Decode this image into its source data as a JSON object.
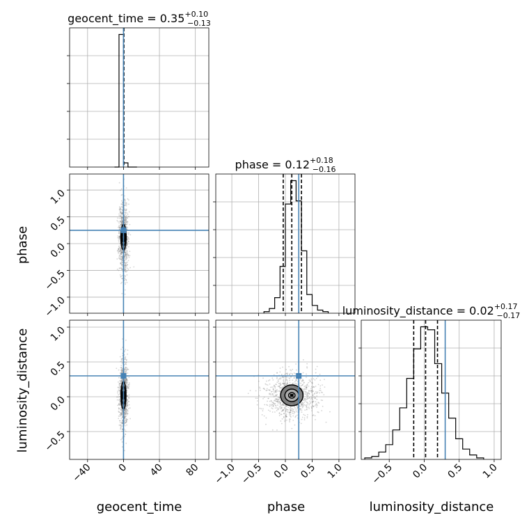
{
  "chart_data": {
    "type": "corner",
    "parameters": [
      "geocent_time",
      "phase",
      "luminosity_distance"
    ],
    "truth_color": "#4682b4",
    "grid": true,
    "axes": {
      "geocent_time": {
        "label": "geocent_time",
        "range": [
          -60,
          95
        ],
        "ticks": [
          -40,
          0,
          40,
          80
        ],
        "tick_labels": [
          "−40",
          "0",
          "40",
          "80"
        ]
      },
      "phase": {
        "label": "phase",
        "range": [
          -1.3,
          1.3
        ],
        "ticks": [
          -1.0,
          -0.5,
          0.0,
          0.5,
          1.0
        ],
        "tick_labels": [
          "−1.0",
          "−0.5",
          "0.0",
          "0.5",
          "1.0"
        ]
      },
      "luminosity_distance": {
        "label": "luminosity_distance",
        "range": [
          -0.9,
          1.1
        ],
        "ticks": [
          -0.5,
          0.0,
          0.5,
          1.0
        ],
        "tick_labels": [
          "−0.5",
          "0.0",
          "0.5",
          "1.0"
        ]
      }
    },
    "titles": [
      {
        "param": "geocent_time",
        "text": "geocent_time = 0.35",
        "sup": "+0.10",
        "sub": "−0.13"
      },
      {
        "param": "phase",
        "text": "phase = 0.12",
        "sup": "+0.18",
        "sub": "−0.16"
      },
      {
        "param": "luminosity_distance",
        "text": "luminosity_distance = 0.02",
        "sup": "+0.17",
        "sub": "−0.17"
      }
    ],
    "truths": {
      "geocent_time": 0.0,
      "phase": 0.25,
      "luminosity_distance": 0.3
    },
    "quantiles": {
      "geocent_time": [
        0.22,
        0.35,
        0.45
      ],
      "phase": [
        -0.04,
        0.12,
        0.3
      ],
      "luminosity_distance": [
        -0.15,
        0.02,
        0.19
      ]
    },
    "histograms": {
      "geocent_time": {
        "bin_edges": [
          -10,
          -5,
          0,
          5,
          10,
          15
        ],
        "counts": [
          0,
          0.95,
          0.03,
          0,
          0
        ]
      },
      "phase": {
        "bin_edges": [
          -0.4,
          -0.3,
          -0.2,
          -0.1,
          0.0,
          0.1,
          0.2,
          0.3,
          0.4,
          0.5,
          0.6,
          0.7,
          0.8
        ],
        "counts": [
          0.01,
          0.03,
          0.1,
          0.3,
          0.7,
          0.85,
          0.72,
          0.4,
          0.12,
          0.05,
          0.02,
          0.01
        ]
      },
      "luminosity_distance": {
        "bin_edges": [
          -0.85,
          -0.75,
          -0.65,
          -0.55,
          -0.45,
          -0.35,
          -0.25,
          -0.15,
          -0.05,
          0.05,
          0.15,
          0.25,
          0.35,
          0.45,
          0.55,
          0.65,
          0.75,
          0.85
        ],
        "counts": [
          0.01,
          0.02,
          0.05,
          0.1,
          0.2,
          0.35,
          0.55,
          0.75,
          0.9,
          0.88,
          0.65,
          0.45,
          0.28,
          0.14,
          0.07,
          0.03,
          0.01
        ]
      }
    },
    "density_2d": {
      "phase_vs_geocent_time": {
        "center": [
          0.0,
          0.12
        ],
        "sigma": [
          2.5,
          0.35
        ],
        "contour_sigma": [
          [
            1.4,
            0.09
          ],
          [
            2.2,
            0.16
          ],
          [
            3.0,
            0.24
          ]
        ]
      },
      "luminosity_distance_vs_geocent_time": {
        "center": [
          0.0,
          0.02
        ],
        "sigma": [
          2.5,
          0.25
        ],
        "contour_sigma": [
          [
            1.2,
            0.06
          ],
          [
            2.0,
            0.13
          ],
          [
            2.8,
            0.2
          ]
        ]
      },
      "luminosity_distance_vs_phase": {
        "center": [
          0.12,
          0.02
        ],
        "sigma": [
          0.25,
          0.17
        ],
        "contour_sigma": [
          [
            0.06,
            0.04
          ],
          [
            0.13,
            0.09
          ],
          [
            0.21,
            0.15
          ]
        ]
      }
    }
  }
}
